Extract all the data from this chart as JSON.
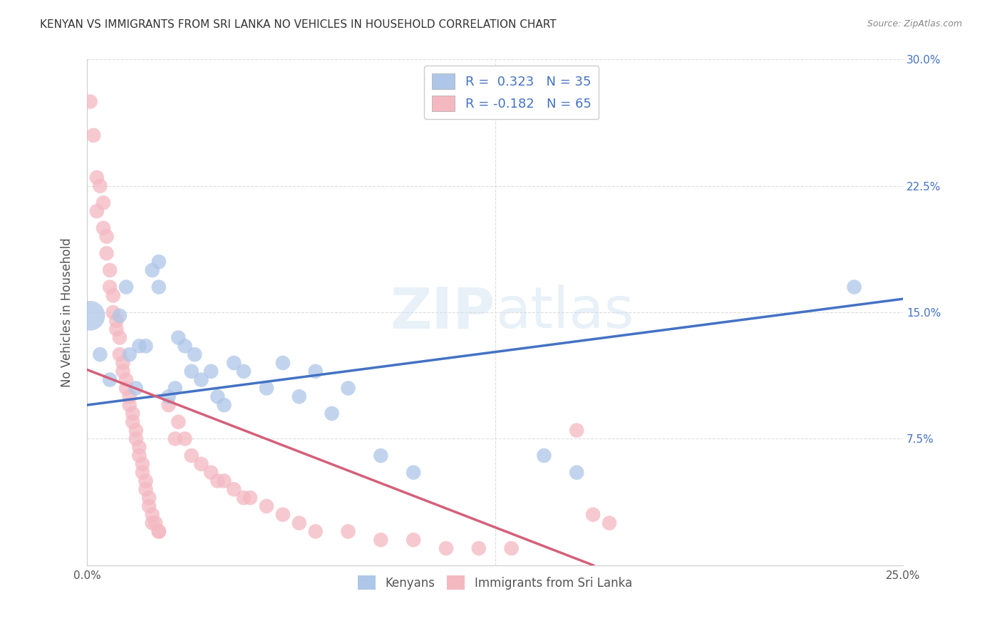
{
  "title": "KENYAN VS IMMIGRANTS FROM SRI LANKA NO VEHICLES IN HOUSEHOLD CORRELATION CHART",
  "source": "Source: ZipAtlas.com",
  "ylabel": "No Vehicles in Household",
  "xlim": [
    0.0,
    0.25
  ],
  "ylim": [
    0.0,
    0.3
  ],
  "xticks": [
    0.0,
    0.05,
    0.1,
    0.15,
    0.2,
    0.25
  ],
  "yticks": [
    0.0,
    0.075,
    0.15,
    0.225,
    0.3
  ],
  "legend_entries": [
    {
      "label": "R =  0.323   N = 35",
      "color": "#aec6e8"
    },
    {
      "label": "R = -0.182   N = 65",
      "color": "#f4b8c1"
    }
  ],
  "legend_bottom": [
    "Kenyans",
    "Immigrants from Sri Lanka"
  ],
  "watermark": "ZIPatlas",
  "kenyan_color": "#aec6e8",
  "srilanka_color": "#f4b8c1",
  "kenyan_line_color": "#4472c4",
  "srilanka_line_color": "#d4607a",
  "grid_color": "#dddddd",
  "background_color": "#ffffff",
  "kenyan_line": [
    0.0,
    0.095,
    0.25,
    0.158
  ],
  "srilanka_line_solid": [
    0.0,
    0.116,
    0.155,
    0.0
  ],
  "srilanka_line_dashed": [
    0.155,
    0.0,
    0.25,
    -0.056
  ],
  "kenyan_points": [
    [
      0.001,
      0.148
    ],
    [
      0.004,
      0.125
    ],
    [
      0.007,
      0.11
    ],
    [
      0.01,
      0.148
    ],
    [
      0.012,
      0.165
    ],
    [
      0.013,
      0.125
    ],
    [
      0.015,
      0.105
    ],
    [
      0.016,
      0.13
    ],
    [
      0.018,
      0.13
    ],
    [
      0.02,
      0.175
    ],
    [
      0.022,
      0.165
    ],
    [
      0.022,
      0.18
    ],
    [
      0.025,
      0.1
    ],
    [
      0.027,
      0.105
    ],
    [
      0.028,
      0.135
    ],
    [
      0.03,
      0.13
    ],
    [
      0.032,
      0.115
    ],
    [
      0.033,
      0.125
    ],
    [
      0.035,
      0.11
    ],
    [
      0.038,
      0.115
    ],
    [
      0.04,
      0.1
    ],
    [
      0.042,
      0.095
    ],
    [
      0.045,
      0.12
    ],
    [
      0.048,
      0.115
    ],
    [
      0.055,
      0.105
    ],
    [
      0.06,
      0.12
    ],
    [
      0.065,
      0.1
    ],
    [
      0.07,
      0.115
    ],
    [
      0.075,
      0.09
    ],
    [
      0.08,
      0.105
    ],
    [
      0.09,
      0.065
    ],
    [
      0.1,
      0.055
    ],
    [
      0.14,
      0.065
    ],
    [
      0.15,
      0.055
    ],
    [
      0.235,
      0.165
    ]
  ],
  "kenyan_large_idx": 0,
  "srilanka_points": [
    [
      0.001,
      0.275
    ],
    [
      0.002,
      0.255
    ],
    [
      0.003,
      0.23
    ],
    [
      0.003,
      0.21
    ],
    [
      0.004,
      0.225
    ],
    [
      0.005,
      0.215
    ],
    [
      0.005,
      0.2
    ],
    [
      0.006,
      0.195
    ],
    [
      0.006,
      0.185
    ],
    [
      0.007,
      0.175
    ],
    [
      0.007,
      0.165
    ],
    [
      0.008,
      0.16
    ],
    [
      0.008,
      0.15
    ],
    [
      0.009,
      0.145
    ],
    [
      0.009,
      0.14
    ],
    [
      0.01,
      0.135
    ],
    [
      0.01,
      0.125
    ],
    [
      0.011,
      0.12
    ],
    [
      0.011,
      0.115
    ],
    [
      0.012,
      0.11
    ],
    [
      0.012,
      0.105
    ],
    [
      0.013,
      0.1
    ],
    [
      0.013,
      0.095
    ],
    [
      0.014,
      0.09
    ],
    [
      0.014,
      0.085
    ],
    [
      0.015,
      0.08
    ],
    [
      0.015,
      0.075
    ],
    [
      0.016,
      0.07
    ],
    [
      0.016,
      0.065
    ],
    [
      0.017,
      0.06
    ],
    [
      0.017,
      0.055
    ],
    [
      0.018,
      0.05
    ],
    [
      0.018,
      0.045
    ],
    [
      0.019,
      0.04
    ],
    [
      0.019,
      0.035
    ],
    [
      0.02,
      0.03
    ],
    [
      0.02,
      0.025
    ],
    [
      0.021,
      0.025
    ],
    [
      0.022,
      0.02
    ],
    [
      0.022,
      0.02
    ],
    [
      0.025,
      0.095
    ],
    [
      0.027,
      0.075
    ],
    [
      0.028,
      0.085
    ],
    [
      0.03,
      0.075
    ],
    [
      0.032,
      0.065
    ],
    [
      0.035,
      0.06
    ],
    [
      0.038,
      0.055
    ],
    [
      0.04,
      0.05
    ],
    [
      0.042,
      0.05
    ],
    [
      0.045,
      0.045
    ],
    [
      0.048,
      0.04
    ],
    [
      0.05,
      0.04
    ],
    [
      0.055,
      0.035
    ],
    [
      0.06,
      0.03
    ],
    [
      0.065,
      0.025
    ],
    [
      0.07,
      0.02
    ],
    [
      0.08,
      0.02
    ],
    [
      0.09,
      0.015
    ],
    [
      0.1,
      0.015
    ],
    [
      0.11,
      0.01
    ],
    [
      0.12,
      0.01
    ],
    [
      0.13,
      0.01
    ],
    [
      0.15,
      0.08
    ],
    [
      0.155,
      0.03
    ],
    [
      0.16,
      0.025
    ]
  ]
}
